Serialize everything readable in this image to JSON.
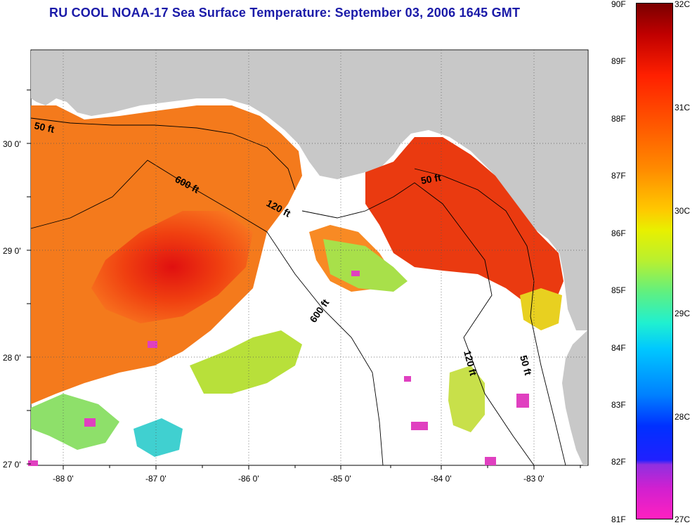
{
  "title": "RU COOL  NOAA-17  Sea Surface Temperature:  September 03, 2006 1645 GMT",
  "map": {
    "lon_labels": [
      "-88 0'",
      "-87 0'",
      "-86 0'",
      "-85 0'",
      "-84 0'",
      "-83 0'"
    ],
    "lat_labels": [
      "30 0'",
      "29 0'",
      "28 0'",
      "27 0'"
    ],
    "contour_labels": [
      "50 ft",
      "600 ft",
      "120 ft",
      "50 ft",
      "600 ft",
      "120 ft",
      "50 ft"
    ]
  },
  "colorbar": {
    "fahrenheit": [
      "90F",
      "89F",
      "88F",
      "87F",
      "86F",
      "85F",
      "84F",
      "83F",
      "82F",
      "81F"
    ],
    "celsius": [
      "32C",
      "31C",
      "30C",
      "29C",
      "28C",
      "27C"
    ]
  },
  "colors": {
    "land": "#c8c8c8",
    "cloud": "#ffffff",
    "title": "#1a1aa8"
  }
}
